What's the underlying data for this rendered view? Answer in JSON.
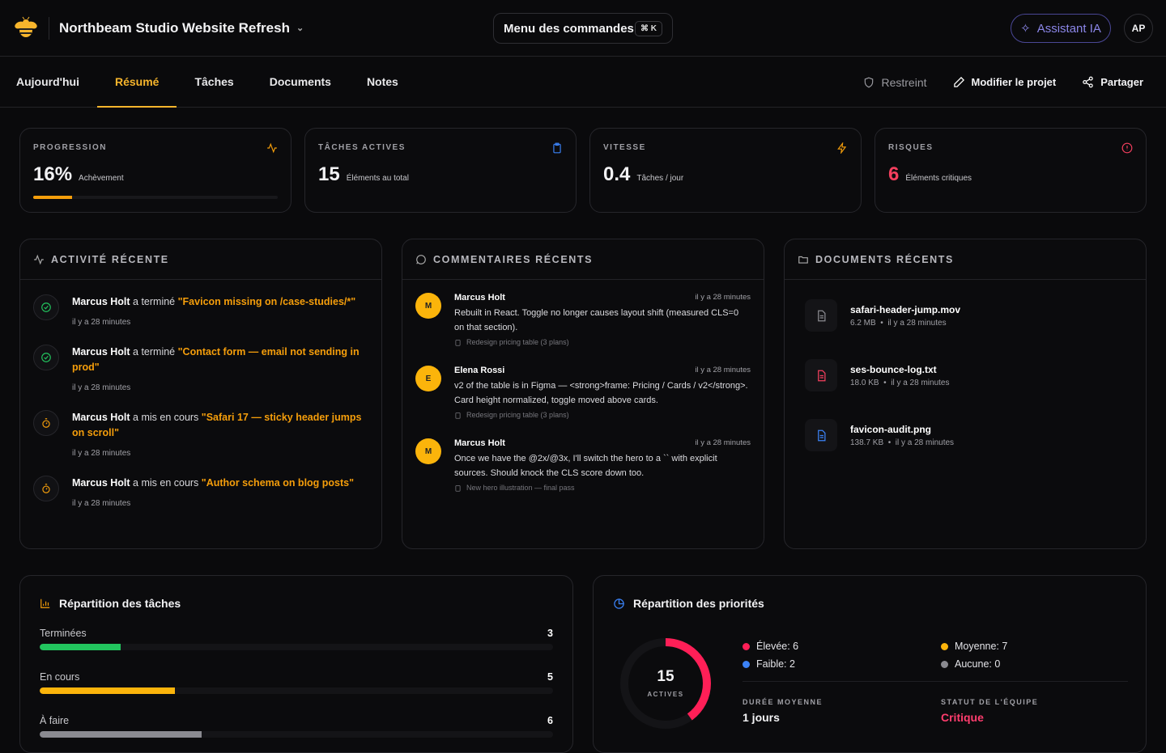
{
  "header": {
    "project_title": "Northbeam Studio Website Refresh",
    "command_menu": "Menu des commandes",
    "command_shortcut": "⌘ K",
    "ai_button": "Assistant IA",
    "avatar_initials": "AP"
  },
  "tabs": [
    {
      "label": "Aujourd'hui"
    },
    {
      "label": "Résumé",
      "active": true
    },
    {
      "label": "Tâches"
    },
    {
      "label": "Documents"
    },
    {
      "label": "Notes"
    }
  ],
  "tab_actions": {
    "restricted": "Restreint",
    "edit": "Modifier le projet",
    "share": "Partager"
  },
  "stats": [
    {
      "label": "PROGRESSION",
      "value": "16%",
      "sub": "Achèvement",
      "progress_percent": 16,
      "icon": "activity-icon",
      "color": "#f59e0b"
    },
    {
      "label": "TÂCHES ACTIVES",
      "value": "15",
      "sub": "Éléments au total",
      "icon": "clipboard-icon",
      "color": "#3b82f6"
    },
    {
      "label": "VITESSE",
      "value": "0.4",
      "sub": "Tâches / jour",
      "icon": "lightning-icon",
      "color": "#f59e0b"
    },
    {
      "label": "RISQUES",
      "value": "6",
      "sub": "Éléments critiques",
      "icon": "alert-circle-icon",
      "color": "#f43f5e"
    }
  ],
  "activity": {
    "title": "ACTIVITÉ RÉCENTE",
    "items": [
      {
        "user": "Marcus Holt",
        "verb": "a terminé",
        "task": "\"Favicon missing on /case-studies/*\"",
        "time": "il y a 28 minutes",
        "icon": "check-circle-icon"
      },
      {
        "user": "Marcus Holt",
        "verb": "a terminé",
        "task": "\"Contact form — email not sending in prod\"",
        "time": "il y a 28 minutes",
        "icon": "check-circle-icon"
      },
      {
        "user": "Marcus Holt",
        "verb": "a mis en cours",
        "task": "\"Safari 17 — sticky header jumps on scroll\"",
        "time": "il y a 28 minutes",
        "icon": "timer-icon"
      },
      {
        "user": "Marcus Holt",
        "verb": "a mis en cours",
        "task": "\"Author schema on blog posts\"",
        "time": "il y a 28 minutes",
        "icon": "timer-icon"
      }
    ]
  },
  "comments": {
    "title": "COMMENTAIRES RÉCENTS",
    "items": [
      {
        "initial": "M",
        "author": "Marcus Holt",
        "time": "il y a 28 minutes",
        "text": "Rebuilt in React. Toggle no longer causes layout shift (measured CLS=0 on that section).",
        "task": "Redesign pricing table (3 plans)"
      },
      {
        "initial": "E",
        "author": "Elena Rossi",
        "time": "il y a 28 minutes",
        "text": "v2 of the table is in Figma — <strong>frame: Pricing / Cards / v2</strong>. Card height normalized, toggle moved above cards.",
        "task": "Redesign pricing table (3 plans)"
      },
      {
        "initial": "M",
        "author": "Marcus Holt",
        "time": "il y a 28 minutes",
        "text": "Once we have the @2x/@3x, I'll switch the hero to a `` with explicit sources. Should knock the CLS score down too.",
        "task": "New hero illustration — final pass"
      }
    ]
  },
  "documents": {
    "title": "DOCUMENTS RÉCENTS",
    "items": [
      {
        "name": "safari-header-jump.mov",
        "size": "6.2 MB",
        "time": "il y a 28 minutes",
        "color": "#8a8a90"
      },
      {
        "name": "ses-bounce-log.txt",
        "size": "18.0 KB",
        "time": "il y a 28 minutes",
        "color": "#f43f5e"
      },
      {
        "name": "favicon-audit.png",
        "size": "138.7 KB",
        "time": "il y a 28 minutes",
        "color": "#3b82f6"
      }
    ]
  },
  "task_breakdown": {
    "title": "Répartition des tâches",
    "rows": [
      {
        "label": "Terminées",
        "count": "3",
        "fill_percent": 15.8,
        "color": "#22c55e"
      },
      {
        "label": "En cours",
        "count": "5",
        "fill_percent": 26.3,
        "color": "#fbb40b"
      },
      {
        "label": "À faire",
        "count": "6",
        "fill_percent": 31.6,
        "color": "#8a8a90"
      }
    ]
  },
  "priority": {
    "title": "Répartition des priorités",
    "total": "15",
    "total_label": "ACTIVES",
    "ring_fraction": 0.4,
    "ring_color": "#ff1f57",
    "legend": [
      {
        "label": "Élevée: 6",
        "color": "#ff1f57"
      },
      {
        "label": "Moyenne: 7",
        "color": "#fbb40b"
      },
      {
        "label": "Faible: 2",
        "color": "#3b82f6"
      },
      {
        "label": "Aucune: 0",
        "color": "#8a8a90"
      }
    ],
    "avg_label": "DURÉE MOYENNE",
    "avg_value": "1 jours",
    "status_label": "STATUT DE L'ÉQUIPE",
    "status_value": "Critique"
  }
}
